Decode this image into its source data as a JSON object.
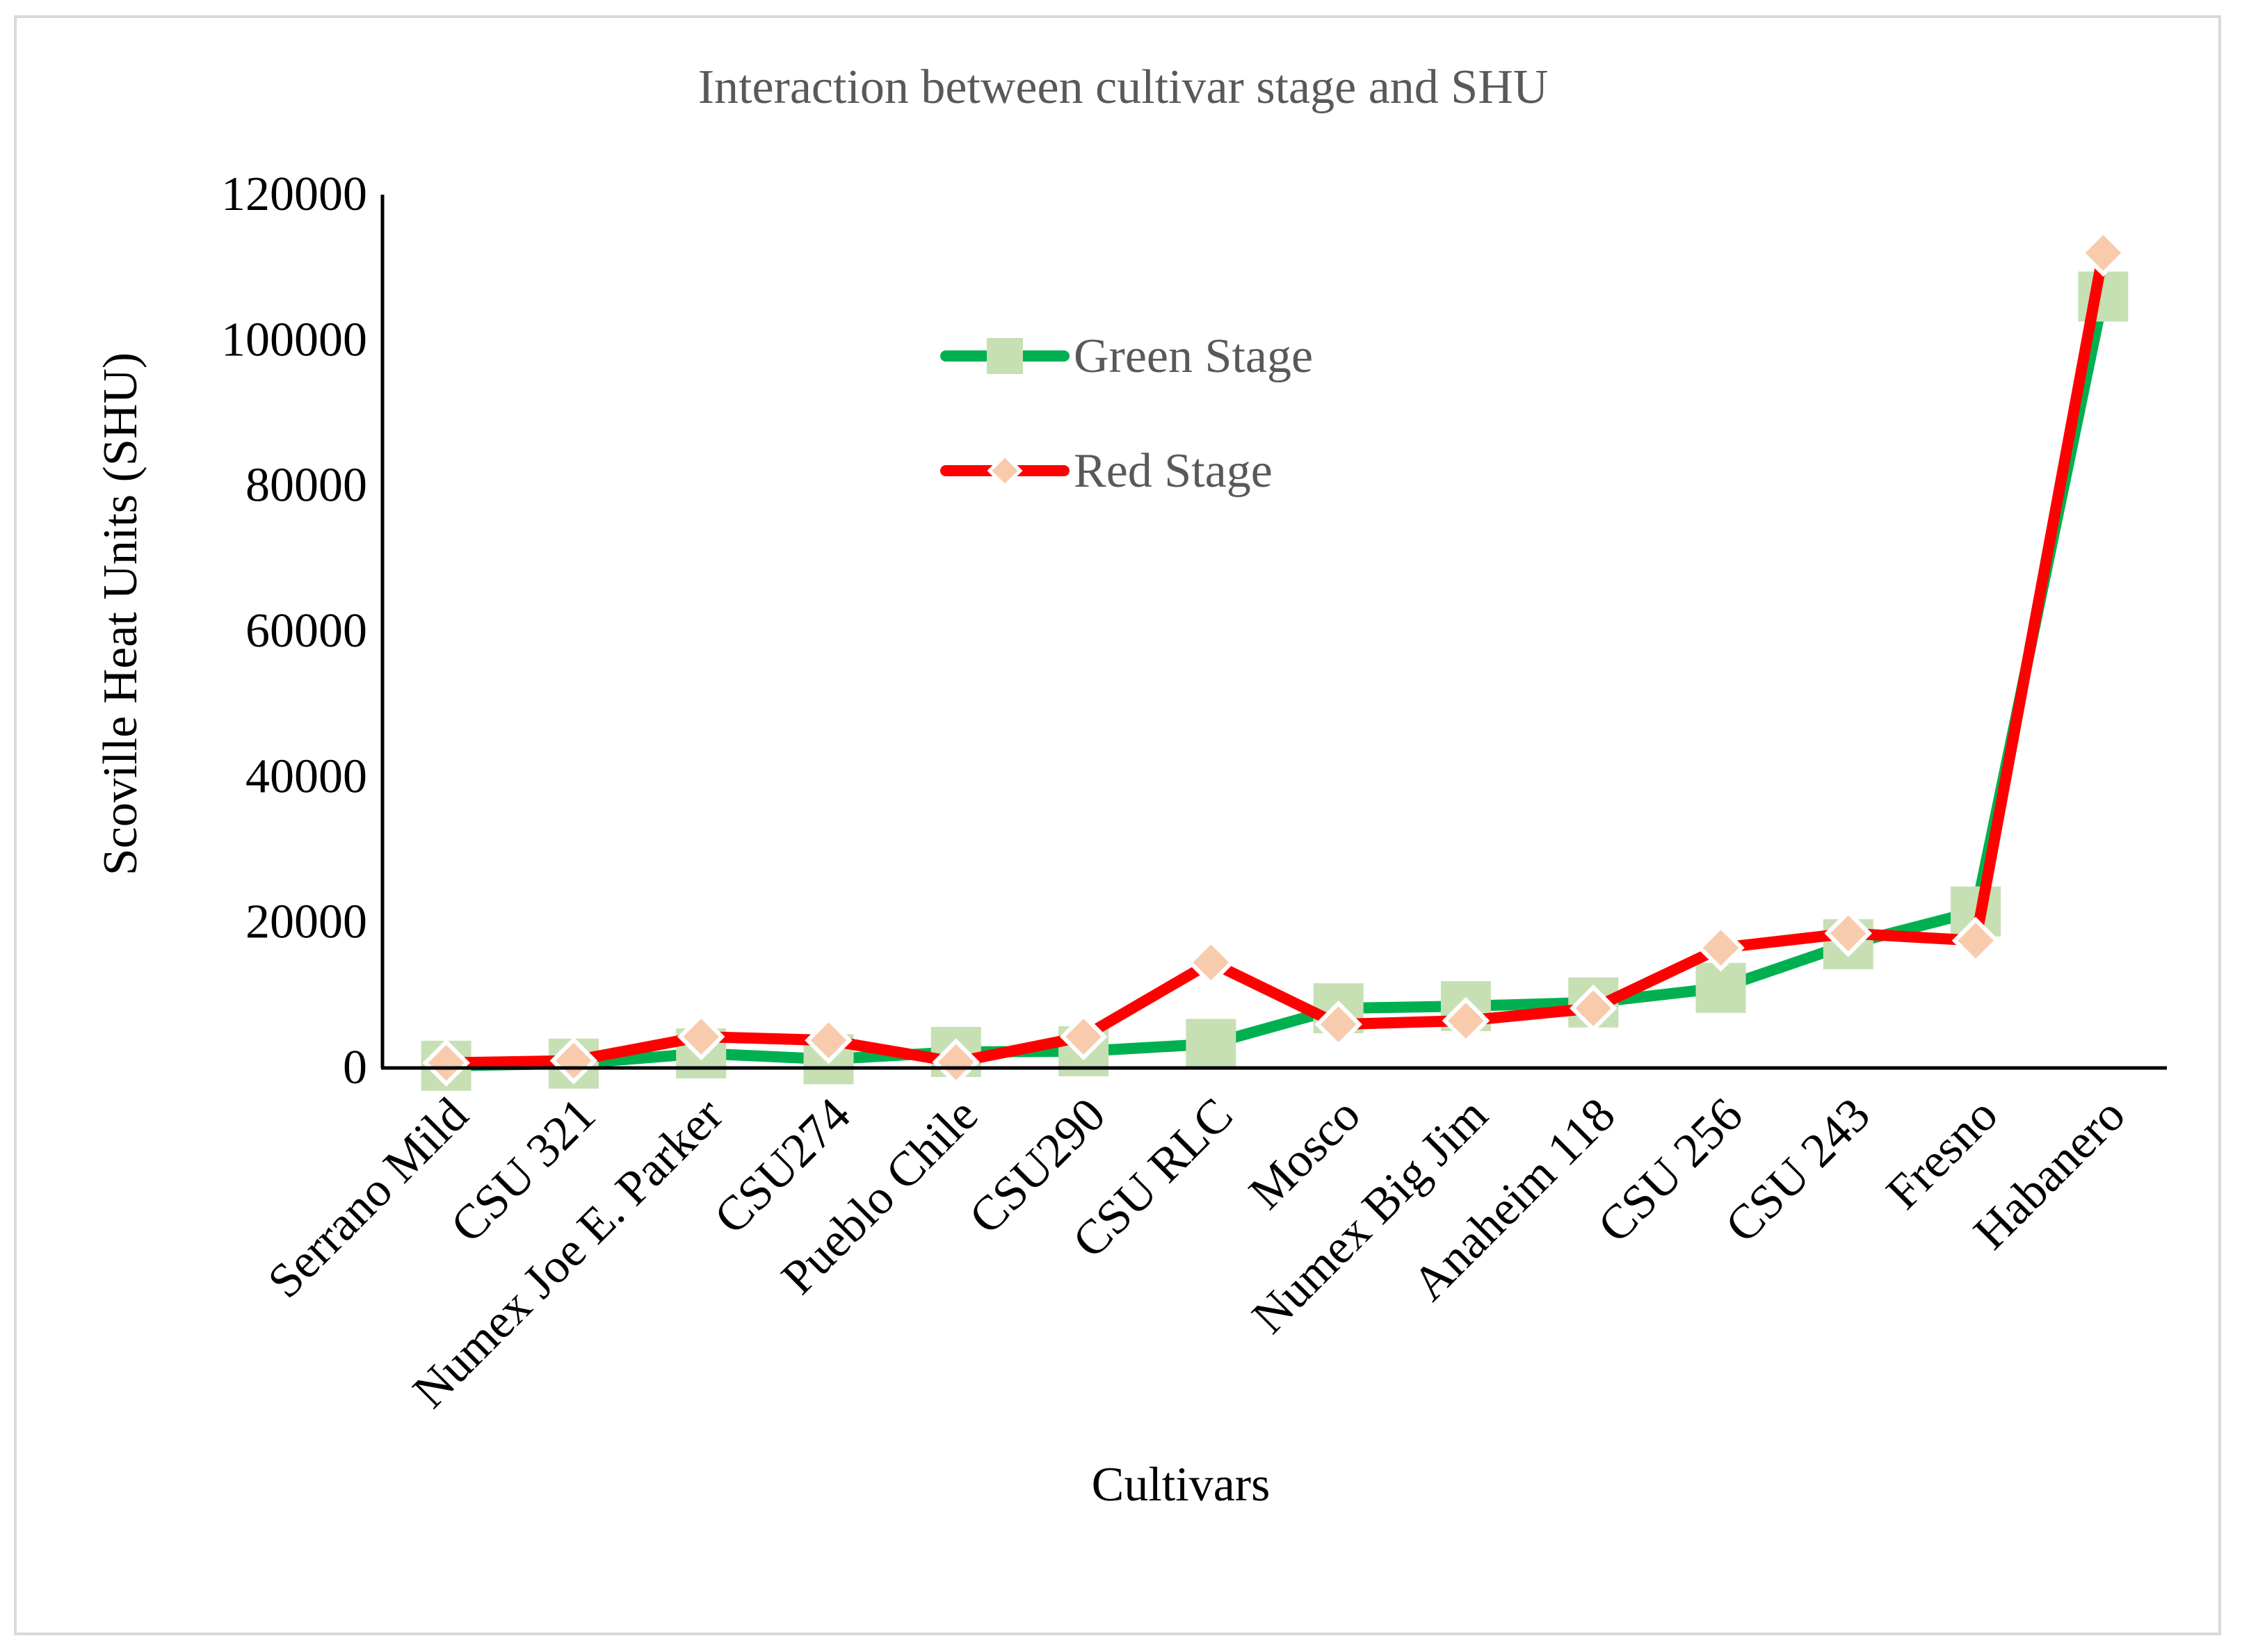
{
  "chart_data": {
    "type": "line",
    "title": "Interaction between cultivar stage and SHU",
    "xlabel": "Cultivars",
    "ylabel": "Scoville Heat Units (SHU)",
    "ylim": [
      0,
      120000
    ],
    "yticks": [
      0,
      20000,
      40000,
      60000,
      80000,
      100000,
      120000
    ],
    "legend_position": "upper-middle",
    "categories": [
      "Serrano Mild",
      "CSU 321",
      "Numex Joe E. Parker",
      "CSU274",
      "Pueblo Chile",
      "CSU290",
      "CSU RLC",
      "Mosco",
      "Numex Big Jim",
      "Anaheim 118",
      "CSU 256",
      "CSU 243",
      "Fresno",
      "Habanero"
    ],
    "series": [
      {
        "name": "Green Stage",
        "line_color": "#00b050",
        "marker_color": "#c6e0b4",
        "marker": "square",
        "values": [
          300,
          600,
          2000,
          1200,
          2200,
          2300,
          3300,
          8200,
          8500,
          9000,
          11000,
          17000,
          21500,
          106000
        ]
      },
      {
        "name": "Red Stage",
        "line_color": "#ff0000",
        "marker_color": "#f8cbad",
        "marker": "diamond",
        "values": [
          700,
          1000,
          4300,
          3800,
          800,
          4300,
          14500,
          6000,
          6500,
          8200,
          16500,
          18500,
          17500,
          112000
        ]
      }
    ]
  }
}
